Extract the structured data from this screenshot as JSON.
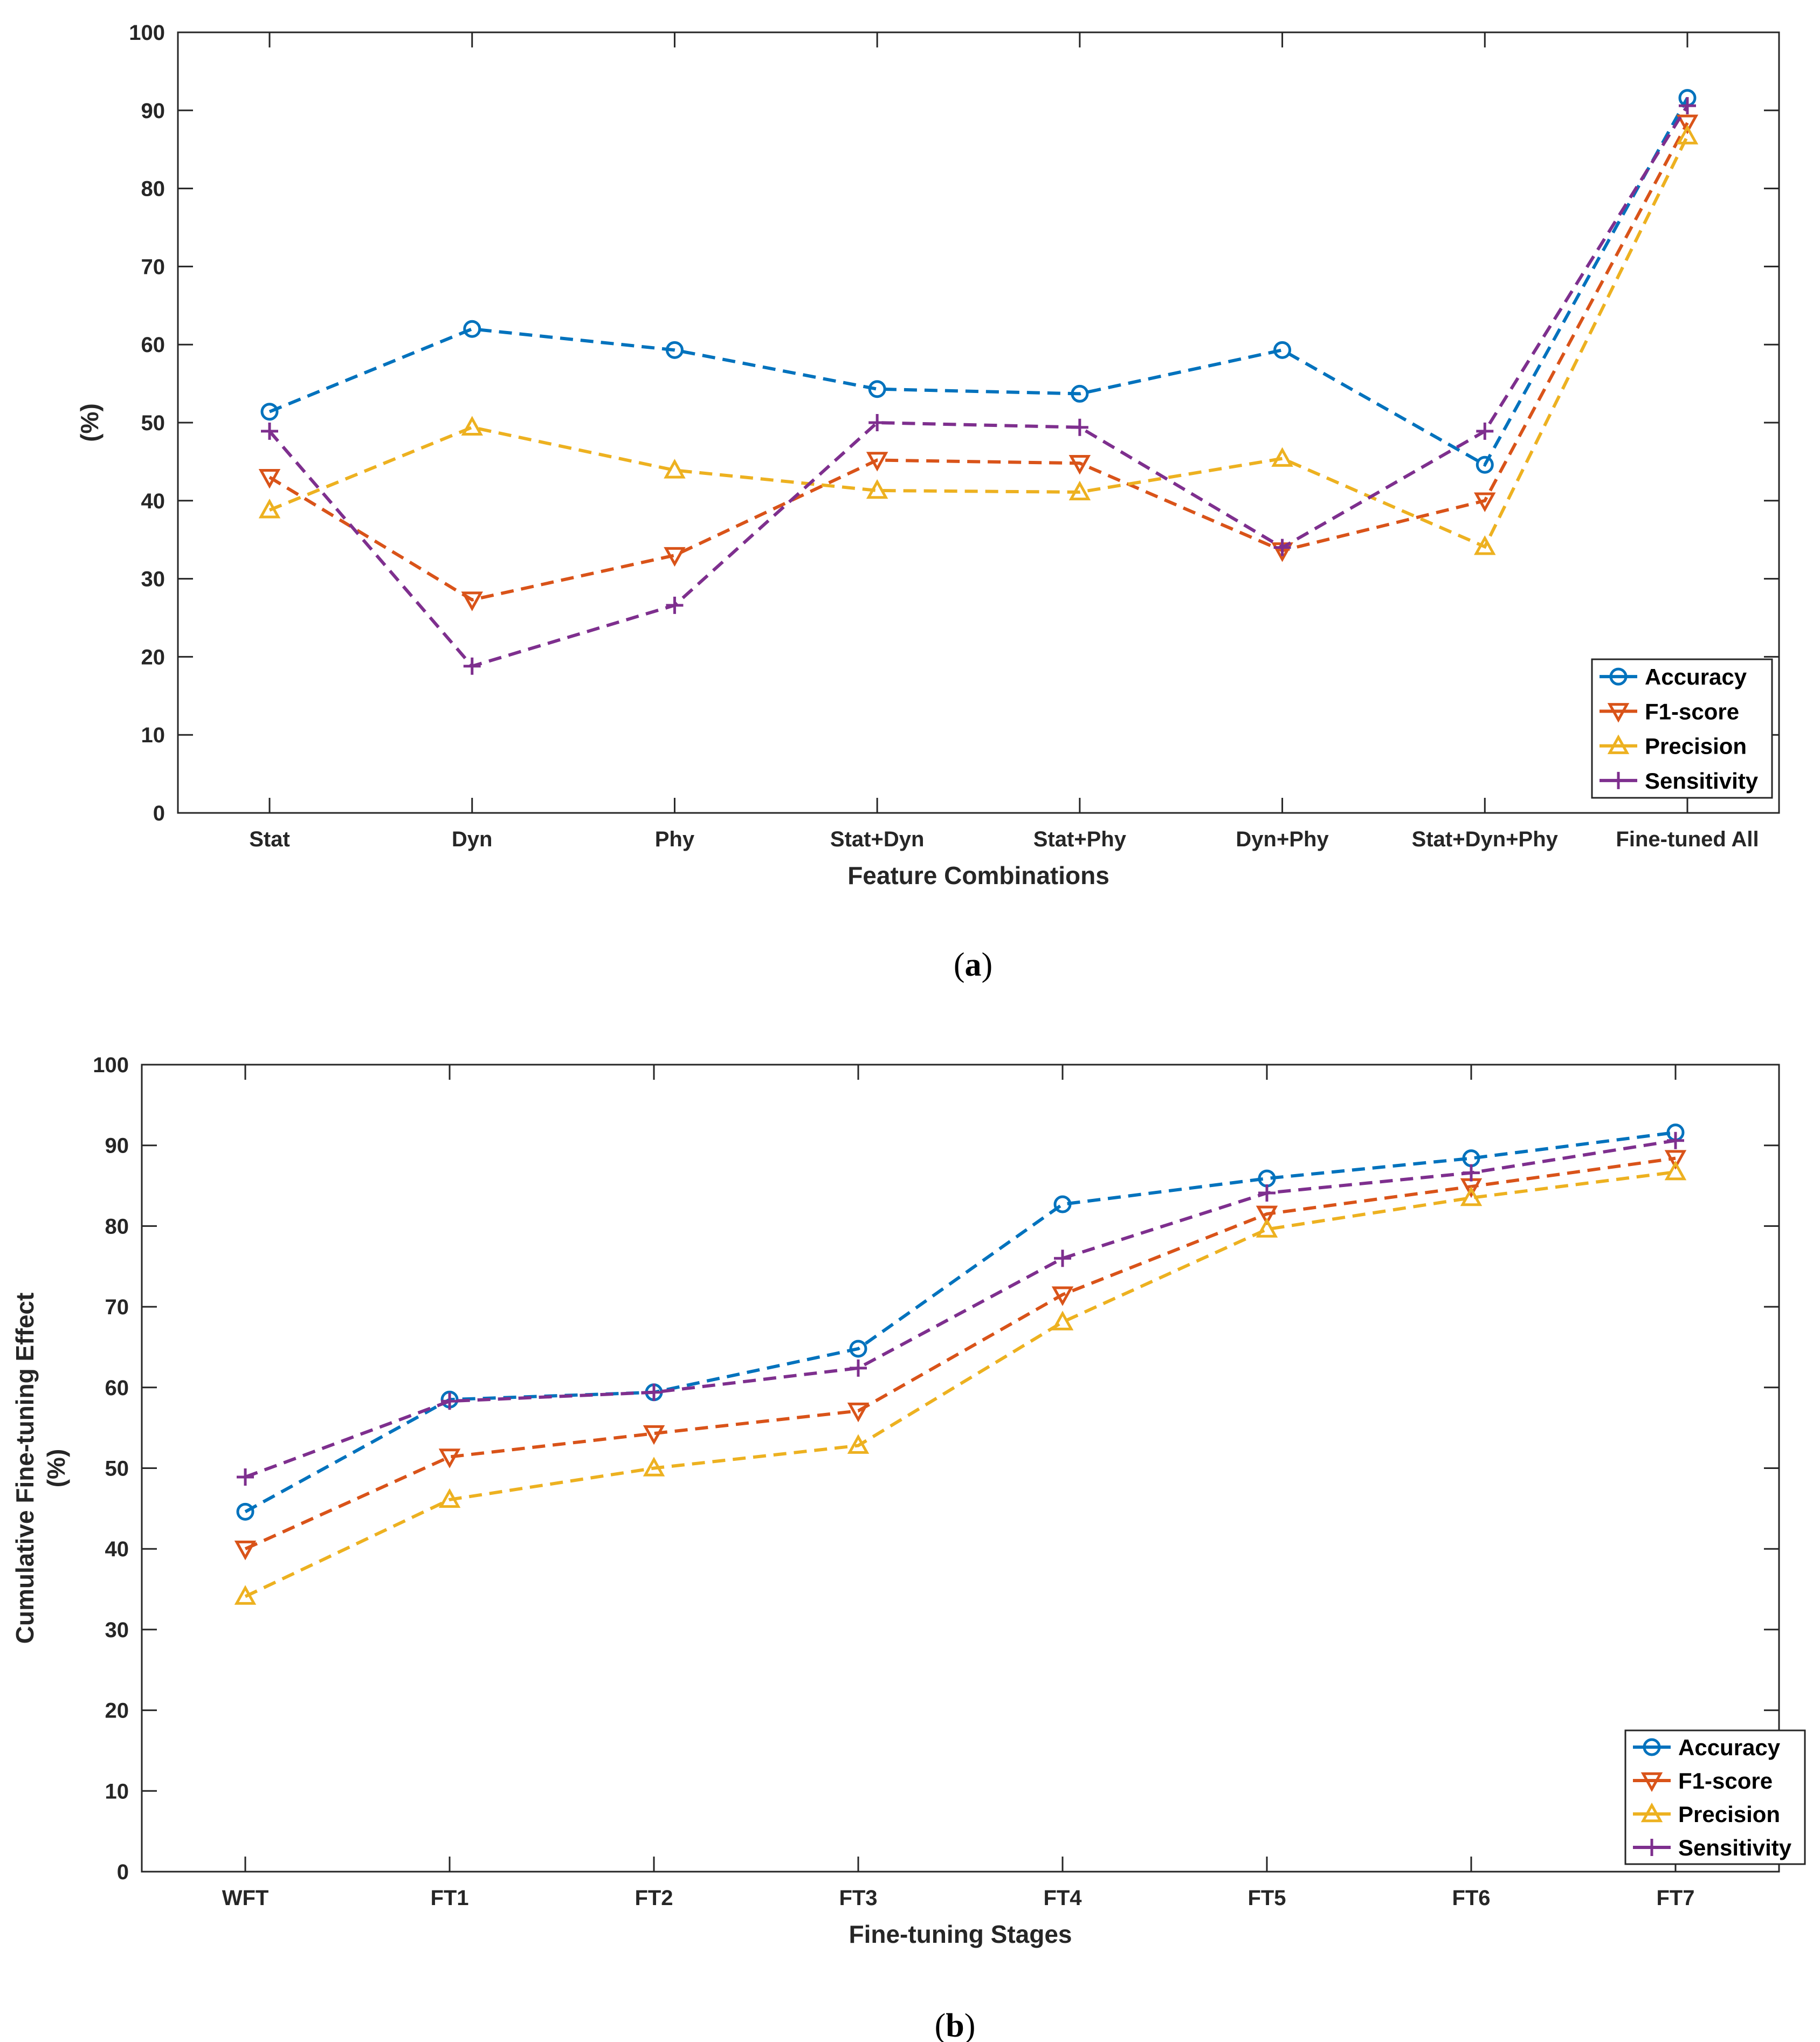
{
  "colors": {
    "accuracy": "#0072BD",
    "f1": "#D95319",
    "precision": "#EDB120",
    "sensitivity": "#7E2F8E",
    "axis": "#262626"
  },
  "chart_data": [
    {
      "type": "line",
      "id": "a",
      "caption_open": "(",
      "caption_letter": "a",
      "caption_close": ")",
      "categories": [
        "Stat",
        "Dyn",
        "Phy",
        "Stat+Dyn",
        "Stat+Phy",
        "Dyn+Phy",
        "Stat+Dyn+Phy",
        "Fine-tuned All"
      ],
      "xlabel": "Feature Combinations",
      "ylabel": "(%)",
      "ylabel_line2": "",
      "ylim": [
        0,
        100
      ],
      "yticks": [
        "0",
        "10",
        "20",
        "30",
        "40",
        "50",
        "60",
        "70",
        "80",
        "90",
        "100"
      ],
      "legend_position": "bottom-right",
      "series": [
        {
          "name": "Accuracy",
          "marker": "circle",
          "color_key": "accuracy",
          "values": [
            51.4,
            62.0,
            59.3,
            54.3,
            53.7,
            59.3,
            44.6,
            91.6
          ]
        },
        {
          "name": "F1-score",
          "marker": "triangle-down",
          "color_key": "f1",
          "values": [
            43.0,
            27.3,
            33.0,
            45.2,
            44.8,
            33.6,
            40.0,
            88.4
          ]
        },
        {
          "name": "Precision",
          "marker": "triangle-up",
          "color_key": "precision",
          "values": [
            38.8,
            49.4,
            43.9,
            41.3,
            41.1,
            45.4,
            34.1,
            86.7
          ]
        },
        {
          "name": "Sensitivity",
          "marker": "plus",
          "color_key": "sensitivity",
          "values": [
            48.9,
            18.8,
            26.6,
            50.0,
            49.4,
            34.0,
            48.9,
            90.6
          ]
        }
      ]
    },
    {
      "type": "line",
      "id": "b",
      "caption_open": "(",
      "caption_letter": "b",
      "caption_close": ")",
      "categories": [
        "WFT",
        "FT1",
        "FT2",
        "FT3",
        "FT4",
        "FT5",
        "FT6",
        "FT7"
      ],
      "xlabel": "Fine-tuning Stages",
      "ylabel": "Cumulative Fine-tuning Effect",
      "ylabel_line2": "(%)",
      "ylim": [
        0,
        100
      ],
      "yticks": [
        "0",
        "10",
        "20",
        "30",
        "40",
        "50",
        "60",
        "70",
        "80",
        "90",
        "100"
      ],
      "legend_position": "bottom-right",
      "series": [
        {
          "name": "Accuracy",
          "marker": "circle",
          "color_key": "accuracy",
          "values": [
            44.6,
            58.5,
            59.4,
            64.8,
            82.7,
            85.9,
            88.4,
            91.6
          ]
        },
        {
          "name": "F1-score",
          "marker": "triangle-down",
          "color_key": "f1",
          "values": [
            40.0,
            51.4,
            54.3,
            57.1,
            71.5,
            81.5,
            84.9,
            88.4
          ]
        },
        {
          "name": "Precision",
          "marker": "triangle-up",
          "color_key": "precision",
          "values": [
            34.1,
            46.1,
            50.0,
            52.8,
            68.1,
            79.6,
            83.5,
            86.7
          ]
        },
        {
          "name": "Sensitivity",
          "marker": "plus",
          "color_key": "sensitivity",
          "values": [
            48.9,
            58.3,
            59.4,
            62.4,
            76.0,
            84.1,
            86.6,
            90.6
          ]
        }
      ]
    }
  ]
}
